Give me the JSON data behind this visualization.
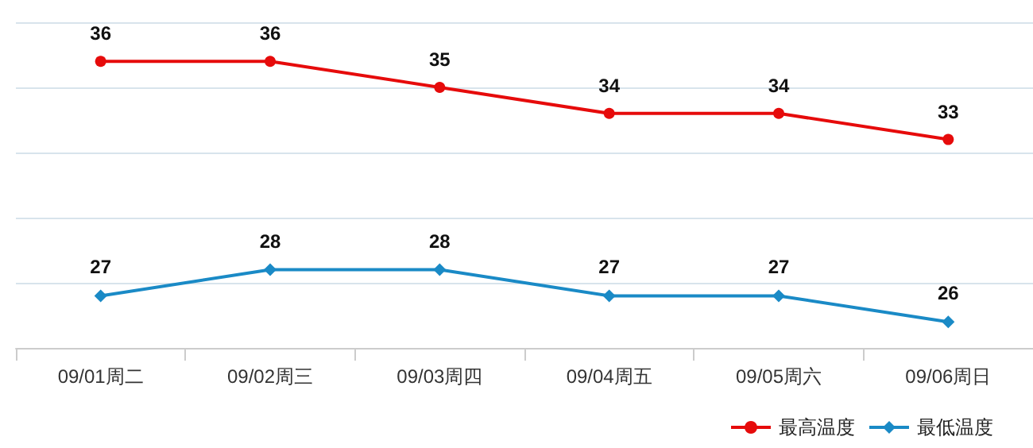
{
  "chart_data": {
    "type": "line",
    "categories": [
      "09/01周二",
      "09/02周三",
      "09/03周四",
      "09/04周五",
      "09/05周六",
      "09/06周日"
    ],
    "series": [
      {
        "name": "最高温度",
        "color": "#e60b0b",
        "marker": "circle",
        "values": [
          36,
          36,
          35,
          34,
          34,
          33
        ]
      },
      {
        "name": "最低温度",
        "color": "#1a8ac6",
        "marker": "diamond",
        "values": [
          27,
          28,
          28,
          27,
          27,
          26
        ]
      }
    ],
    "ylim": [
      25,
      37.5
    ],
    "yticks": [
      {
        "value": 25,
        "label": null
      },
      {
        "value": 27.5,
        "label": null
      },
      {
        "value": 30,
        "label": null
      },
      {
        "value": 32.5,
        "label": null
      },
      {
        "value": 35,
        "label": null
      },
      {
        "value": 37.5,
        "label": null
      }
    ],
    "tick_labels": "x",
    "grid": "y",
    "data_labels": true,
    "legend": "bottom right",
    "line_style": "solid"
  }
}
